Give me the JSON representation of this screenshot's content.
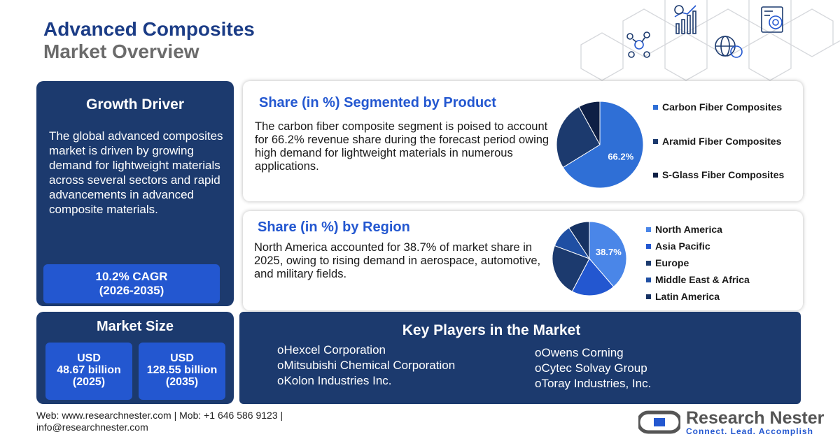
{
  "header": {
    "title_line1": "Advanced Composites",
    "title_line2": "Market Overview",
    "deco_icons": [
      "network-people-icon",
      "growth-chart-icon",
      "target-report-icon",
      "globe-dollar-icon"
    ]
  },
  "growth_driver": {
    "title": "Growth Driver",
    "text": "The global advanced composites market is driven by growing demand for lightweight materials across several sectors and rapid advancements in advanced composite materials.",
    "cagr_line1": "10.2% CAGR",
    "cagr_line2": "(2026-2035)"
  },
  "market_size": {
    "title": "Market Size",
    "box1": {
      "currency": "USD",
      "value": "48.67 billion",
      "year": "(2025)"
    },
    "box2": {
      "currency": "USD",
      "value": "128.55 billion",
      "year": "(2035)"
    }
  },
  "product_segment": {
    "title": "Share (in %) Segmented by Product",
    "text": "The carbon fiber composite segment is poised to account for 66.2% revenue share during the forecast period owing high demand for lightweight materials in numerous applications.",
    "pie_label": "66.2%"
  },
  "region_segment": {
    "title": "Share (in %) by Region",
    "text": "North America accounted for 38.7% of market share in 2025, owing to rising demand in aerospace, automotive, and military fields.",
    "pie_label": "38.7%"
  },
  "chart_data": [
    {
      "type": "pie",
      "categories": [
        "Carbon Fiber Composites",
        "Aramid Fiber Composites",
        "S-Glass Fiber Composites"
      ],
      "values": [
        66.2,
        25.8,
        8.0
      ],
      "colors": [
        "#2f6fd6",
        "#1c3a6e",
        "#0e1f45"
      ],
      "legend": "right"
    },
    {
      "type": "pie",
      "categories": [
        "North America",
        "Asia Pacific",
        "Europe",
        "Middle East & Africa",
        "Latin America"
      ],
      "values": [
        38.7,
        19,
        23,
        10,
        9.3
      ],
      "colors": [
        "#4a86e8",
        "#2357d0",
        "#1c3a6e",
        "#1f4fa3",
        "#163263"
      ],
      "legend": "right"
    }
  ],
  "key_players": {
    "title": "Key Players in the Market",
    "bullet": "o",
    "left": [
      "Hexcel  Corporation",
      "Mitsubishi Chemical Corporation",
      "Kolon Industries Inc."
    ],
    "right": [
      "Owens Corning",
      "Cytec Solvay Group",
      "Toray Industries, Inc."
    ]
  },
  "footer": {
    "line1": "Web: www.researchnester.com | Mob: +1 646 586 9123 |",
    "line2": "info@researchnester.com",
    "logo_name": "Research Nester",
    "logo_tagline": "Connect. Lead. Accomplish"
  }
}
